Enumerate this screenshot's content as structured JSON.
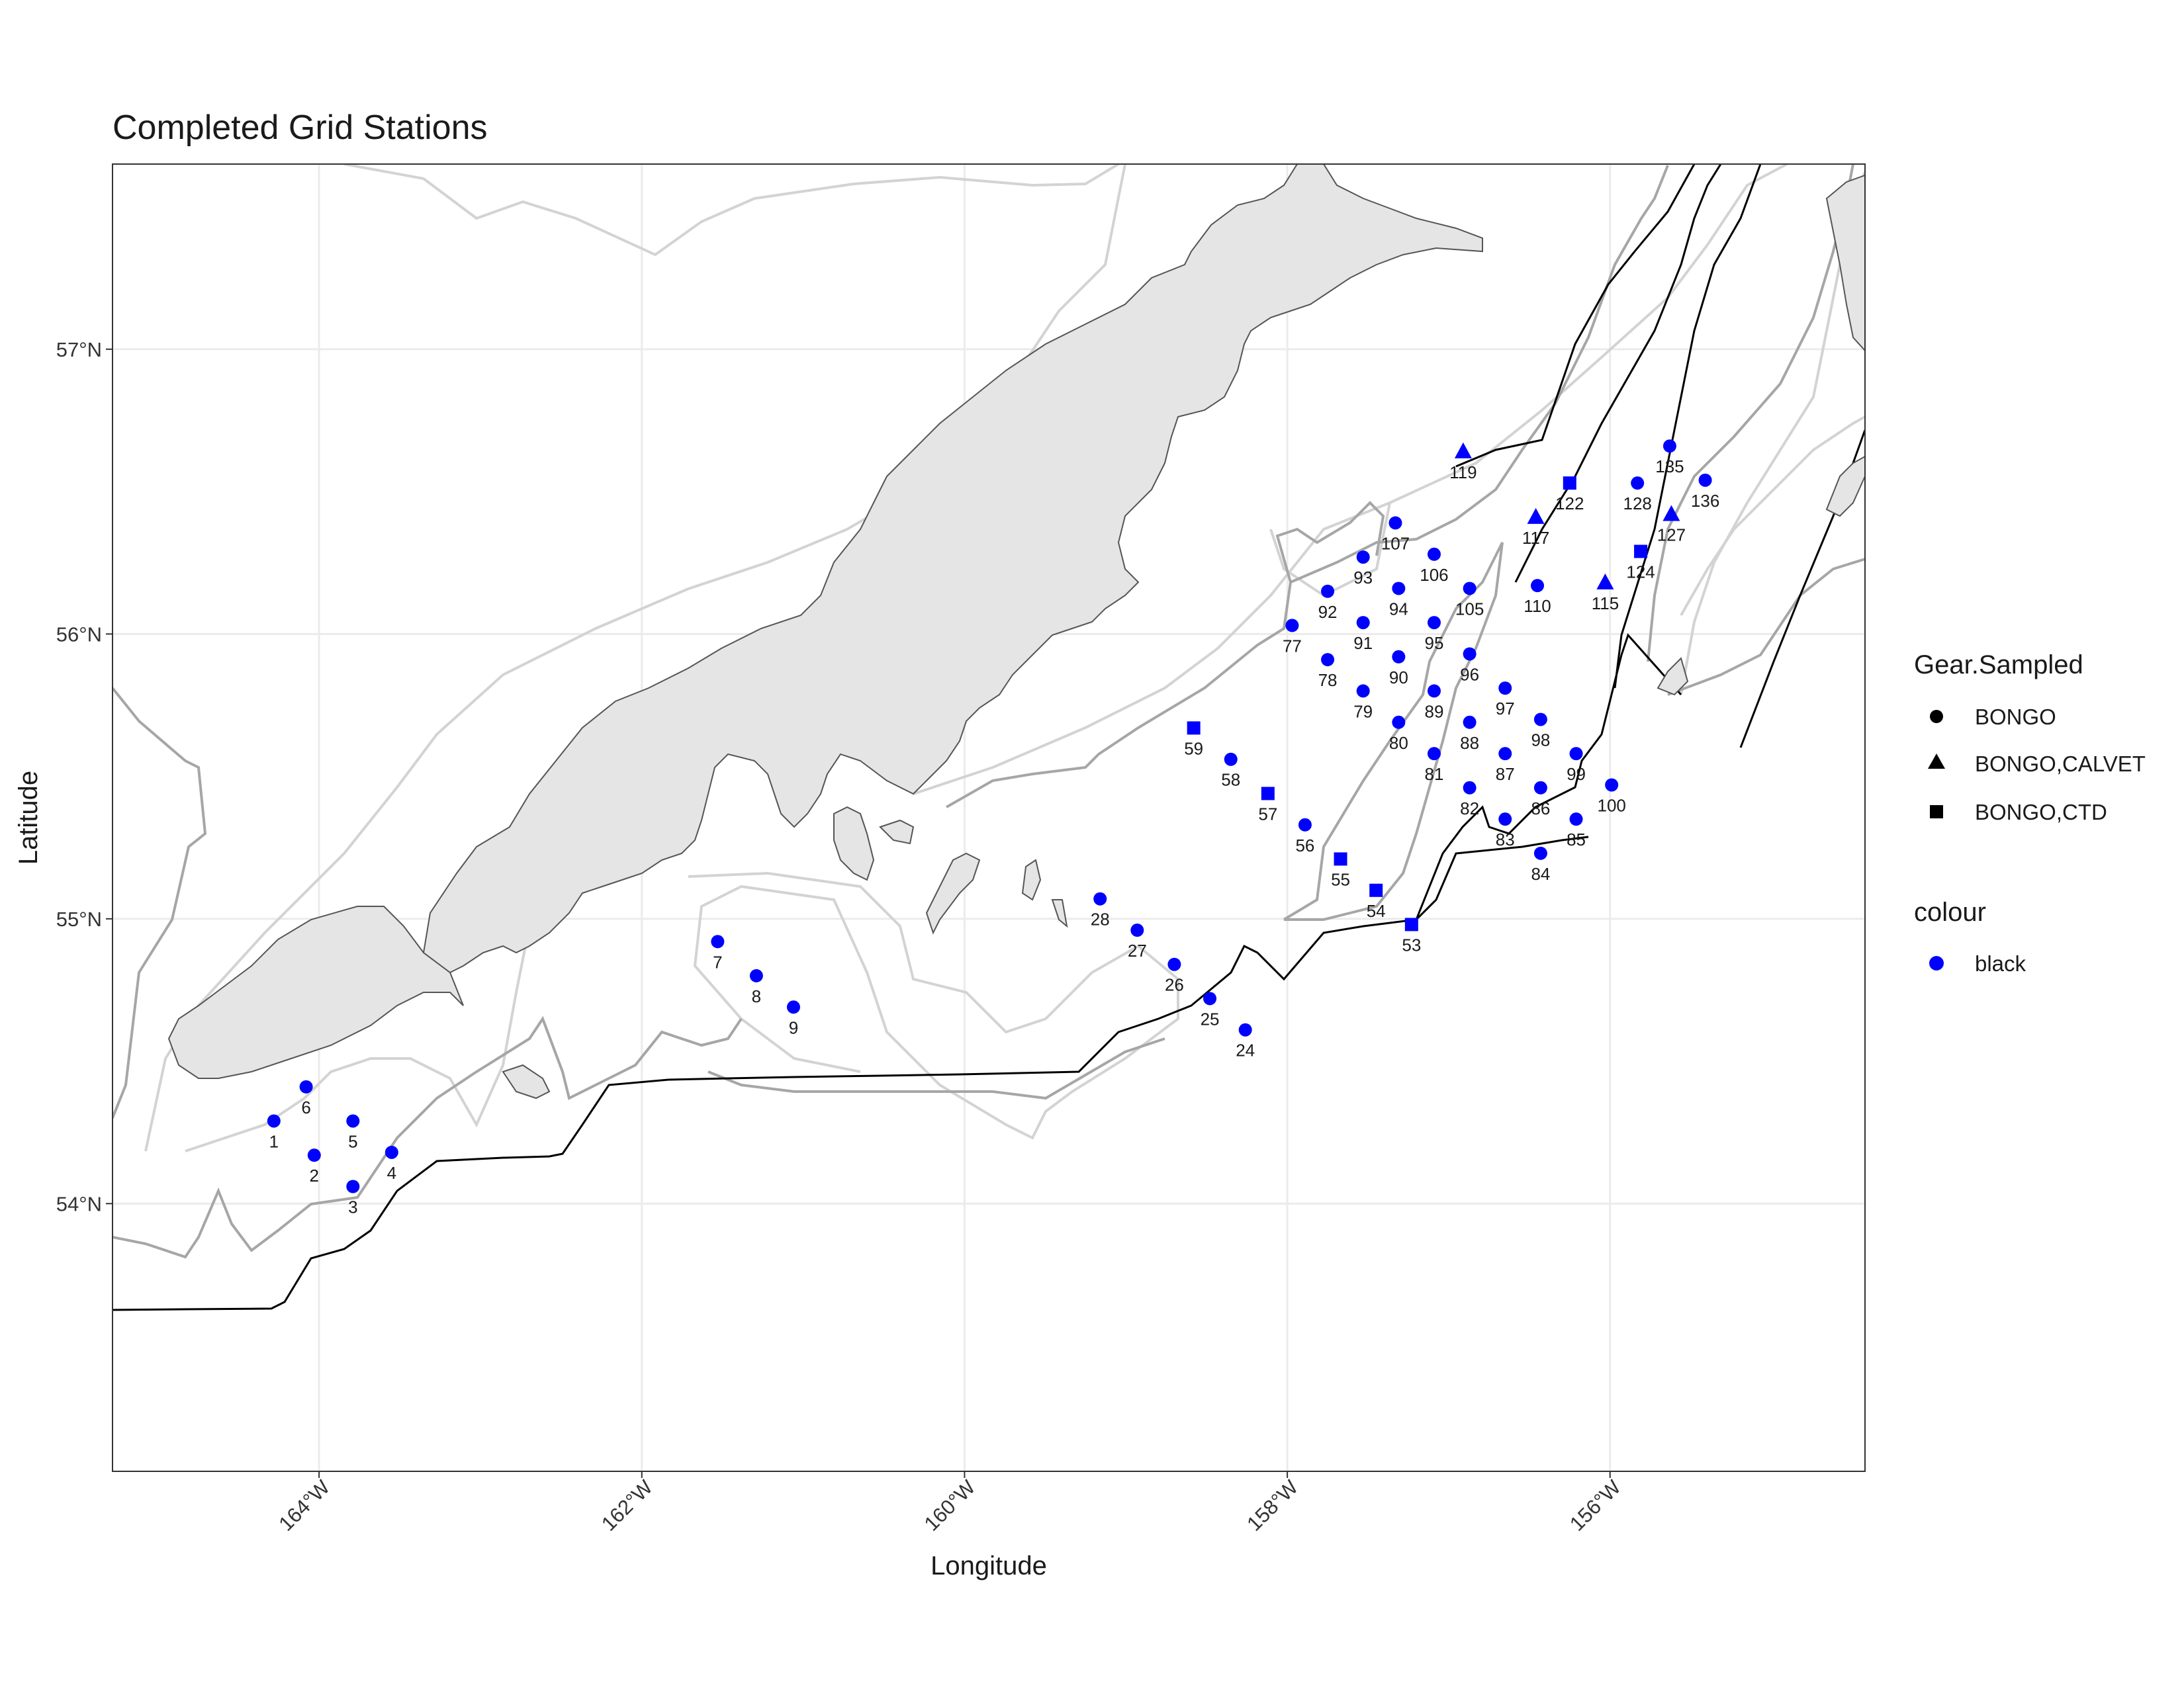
{
  "title": "Completed Grid Stations",
  "axes": {
    "x_label": "Longitude",
    "y_label": "Latitude",
    "x_ticks": [
      {
        "lon": -164,
        "label": "164°W"
      },
      {
        "lon": -162,
        "label": "162°W"
      },
      {
        "lon": -160,
        "label": "160°W"
      },
      {
        "lon": -158,
        "label": "158°W"
      },
      {
        "lon": -156,
        "label": "156°W"
      }
    ],
    "y_ticks": [
      {
        "lat": 54,
        "label": "54°N"
      },
      {
        "lat": 55,
        "label": "55°N"
      },
      {
        "lat": 56,
        "label": "56°N"
      },
      {
        "lat": 57,
        "label": "57°N"
      }
    ],
    "lon_range": [
      -165.28,
      -154.42
    ],
    "lat_range": [
      53.06,
      57.65
    ]
  },
  "legend": {
    "gear_title": "Gear.Sampled",
    "gear_items": [
      {
        "label": "BONGO",
        "shape": "circle"
      },
      {
        "label": "BONGO,CALVET",
        "shape": "triangle"
      },
      {
        "label": "BONGO,CTD",
        "shape": "square"
      }
    ],
    "colour_title": "colour",
    "colour_items": [
      {
        "label": "black",
        "color": "#0000ff"
      }
    ]
  },
  "colors": {
    "points": "#0000ff",
    "land_fill": "#e5e5e5",
    "land_stroke": "#555555",
    "grid": "#ebebeb",
    "contour_deep": "#000000",
    "contour_mid": "#a6a6a6",
    "contour_shallow": "#d3d3d3"
  },
  "stations": [
    {
      "id": "1",
      "lon": -164.28,
      "lat": 54.29,
      "gear": "BONGO"
    },
    {
      "id": "2",
      "lon": -164.03,
      "lat": 54.17,
      "gear": "BONGO"
    },
    {
      "id": "3",
      "lon": -163.79,
      "lat": 54.06,
      "gear": "BONGO"
    },
    {
      "id": "4",
      "lon": -163.55,
      "lat": 54.18,
      "gear": "BONGO"
    },
    {
      "id": "5",
      "lon": -163.79,
      "lat": 54.29,
      "gear": "BONGO"
    },
    {
      "id": "6",
      "lon": -164.08,
      "lat": 54.41,
      "gear": "BONGO"
    },
    {
      "id": "7",
      "lon": -161.53,
      "lat": 54.92,
      "gear": "BONGO"
    },
    {
      "id": "8",
      "lon": -161.29,
      "lat": 54.8,
      "gear": "BONGO"
    },
    {
      "id": "9",
      "lon": -161.06,
      "lat": 54.69,
      "gear": "BONGO"
    },
    {
      "id": "24",
      "lon": -158.26,
      "lat": 54.61,
      "gear": "BONGO"
    },
    {
      "id": "25",
      "lon": -158.48,
      "lat": 54.72,
      "gear": "BONGO"
    },
    {
      "id": "26",
      "lon": -158.7,
      "lat": 54.84,
      "gear": "BONGO"
    },
    {
      "id": "27",
      "lon": -158.93,
      "lat": 54.96,
      "gear": "BONGO"
    },
    {
      "id": "28",
      "lon": -159.16,
      "lat": 55.07,
      "gear": "BONGO"
    },
    {
      "id": "53",
      "lon": -157.23,
      "lat": 54.98,
      "gear": "BONGO,CTD"
    },
    {
      "id": "54",
      "lon": -157.45,
      "lat": 55.1,
      "gear": "BONGO,CTD"
    },
    {
      "id": "55",
      "lon": -157.67,
      "lat": 55.21,
      "gear": "BONGO,CTD"
    },
    {
      "id": "56",
      "lon": -157.89,
      "lat": 55.33,
      "gear": "BONGO"
    },
    {
      "id": "57",
      "lon": -158.12,
      "lat": 55.44,
      "gear": "BONGO,CTD"
    },
    {
      "id": "58",
      "lon": -158.35,
      "lat": 55.56,
      "gear": "BONGO"
    },
    {
      "id": "59",
      "lon": -158.58,
      "lat": 55.67,
      "gear": "BONGO,CTD"
    },
    {
      "id": "77",
      "lon": -157.97,
      "lat": 56.03,
      "gear": "BONGO"
    },
    {
      "id": "78",
      "lon": -157.75,
      "lat": 55.91,
      "gear": "BONGO"
    },
    {
      "id": "79",
      "lon": -157.53,
      "lat": 55.8,
      "gear": "BONGO"
    },
    {
      "id": "80",
      "lon": -157.31,
      "lat": 55.69,
      "gear": "BONGO"
    },
    {
      "id": "81",
      "lon": -157.09,
      "lat": 55.58,
      "gear": "BONGO"
    },
    {
      "id": "82",
      "lon": -156.87,
      "lat": 55.46,
      "gear": "BONGO"
    },
    {
      "id": "83",
      "lon": -156.65,
      "lat": 55.35,
      "gear": "BONGO"
    },
    {
      "id": "84",
      "lon": -156.43,
      "lat": 55.23,
      "gear": "BONGO"
    },
    {
      "id": "85",
      "lon": -156.21,
      "lat": 55.35,
      "gear": "BONGO"
    },
    {
      "id": "86",
      "lon": -156.43,
      "lat": 55.46,
      "gear": "BONGO"
    },
    {
      "id": "87",
      "lon": -156.65,
      "lat": 55.58,
      "gear": "BONGO"
    },
    {
      "id": "88",
      "lon": -156.87,
      "lat": 55.69,
      "gear": "BONGO"
    },
    {
      "id": "89",
      "lon": -157.09,
      "lat": 55.8,
      "gear": "BONGO"
    },
    {
      "id": "90",
      "lon": -157.31,
      "lat": 55.92,
      "gear": "BONGO"
    },
    {
      "id": "91",
      "lon": -157.53,
      "lat": 56.04,
      "gear": "BONGO"
    },
    {
      "id": "92",
      "lon": -157.75,
      "lat": 56.15,
      "gear": "BONGO"
    },
    {
      "id": "93",
      "lon": -157.53,
      "lat": 56.27,
      "gear": "BONGO"
    },
    {
      "id": "94",
      "lon": -157.31,
      "lat": 56.16,
      "gear": "BONGO"
    },
    {
      "id": "95",
      "lon": -157.09,
      "lat": 56.04,
      "gear": "BONGO"
    },
    {
      "id": "96",
      "lon": -156.87,
      "lat": 55.93,
      "gear": "BONGO"
    },
    {
      "id": "97",
      "lon": -156.65,
      "lat": 55.81,
      "gear": "BONGO"
    },
    {
      "id": "98",
      "lon": -156.43,
      "lat": 55.7,
      "gear": "BONGO"
    },
    {
      "id": "99",
      "lon": -156.21,
      "lat": 55.58,
      "gear": "BONGO"
    },
    {
      "id": "100",
      "lon": -155.99,
      "lat": 55.47,
      "gear": "BONGO"
    },
    {
      "id": "105",
      "lon": -156.87,
      "lat": 56.16,
      "gear": "BONGO"
    },
    {
      "id": "106",
      "lon": -157.09,
      "lat": 56.28,
      "gear": "BONGO"
    },
    {
      "id": "107",
      "lon": -157.33,
      "lat": 56.39,
      "gear": "BONGO"
    },
    {
      "id": "110",
      "lon": -156.45,
      "lat": 56.17,
      "gear": "BONGO"
    },
    {
      "id": "115",
      "lon": -156.03,
      "lat": 56.18,
      "gear": "BONGO,CALVET"
    },
    {
      "id": "117",
      "lon": -156.46,
      "lat": 56.41,
      "gear": "BONGO,CALVET"
    },
    {
      "id": "119",
      "lon": -156.91,
      "lat": 56.64,
      "gear": "BONGO,CALVET"
    },
    {
      "id": "122",
      "lon": -156.25,
      "lat": 56.53,
      "gear": "BONGO,CTD"
    },
    {
      "id": "124",
      "lon": -155.81,
      "lat": 56.29,
      "gear": "BONGO,CTD"
    },
    {
      "id": "127",
      "lon": -155.62,
      "lat": 56.42,
      "gear": "BONGO,CALVET"
    },
    {
      "id": "128",
      "lon": -155.83,
      "lat": 56.53,
      "gear": "BONGO"
    },
    {
      "id": "135",
      "lon": -155.63,
      "lat": 56.66,
      "gear": "BONGO"
    },
    {
      "id": "136",
      "lon": -155.41,
      "lat": 56.54,
      "gear": "BONGO"
    }
  ]
}
